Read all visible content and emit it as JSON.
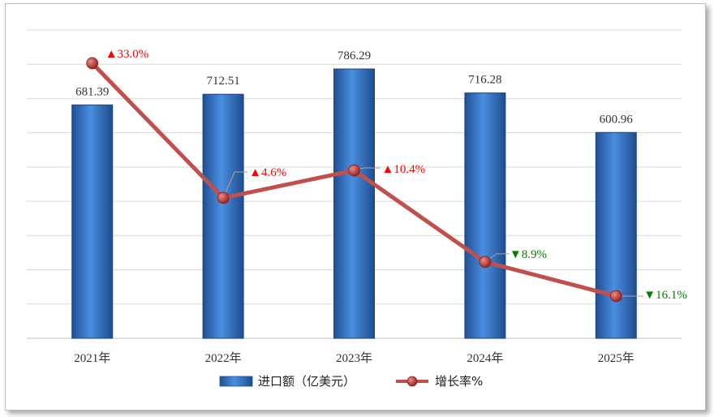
{
  "chart_data": {
    "type": "bar",
    "categories": [
      "2021年",
      "2022年",
      "2023年",
      "2024年",
      "2025年"
    ],
    "series": [
      {
        "name": "进口额（亿美元）",
        "type": "bar",
        "values": [
          681.39,
          712.51,
          786.29,
          716.28,
          600.96
        ],
        "labels": [
          "681.39",
          "712.51",
          "786.29",
          "716.28",
          "600.96"
        ],
        "color": "#3a78c8"
      },
      {
        "name": "增长率%",
        "type": "line",
        "values": [
          33.0,
          4.6,
          10.4,
          -8.9,
          -16.1
        ],
        "labels": [
          "▲33.0%",
          "▲4.6%",
          "▲10.4%",
          "▼8.9%",
          "▼16.1%"
        ],
        "color": "#c0504d"
      }
    ],
    "ylim_bar": [
      0,
      900
    ],
    "ylim_line": [
      -25,
      40
    ],
    "grid": true,
    "legend_position": "bottom",
    "colors": {
      "up": "#ff0000",
      "down": "#008000"
    }
  }
}
